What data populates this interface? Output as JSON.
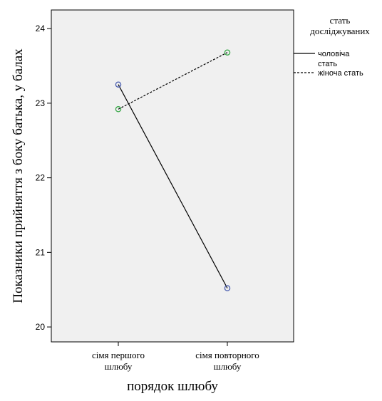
{
  "chart_data": {
    "type": "line",
    "title": "",
    "xlabel": "порядок шлюбу",
    "ylabel": "Показники прийняття з боку батька, у балах",
    "categories": [
      [
        "сімя першого",
        "шлюбу"
      ],
      [
        "сімя повторного",
        "шлюбу"
      ]
    ],
    "ylim": [
      19.8,
      24.25
    ],
    "yticks": [
      20,
      21,
      22,
      23,
      24
    ],
    "grid": false,
    "legend": {
      "title": [
        "стать",
        "досліджуваних"
      ],
      "placement": "right"
    },
    "series": [
      {
        "name": [
          "чоловіча",
          "стать"
        ],
        "values": [
          23.25,
          20.52
        ],
        "line_style": "solid",
        "line_color": "#000000",
        "marker_color": "#4a5eb0"
      },
      {
        "name": [
          "жіноча стать"
        ],
        "values": [
          22.92,
          23.68
        ],
        "line_style": "dashed",
        "line_color": "#000000",
        "marker_color": "#3aa84a"
      }
    ],
    "plot_background": "#f0f0f0"
  }
}
